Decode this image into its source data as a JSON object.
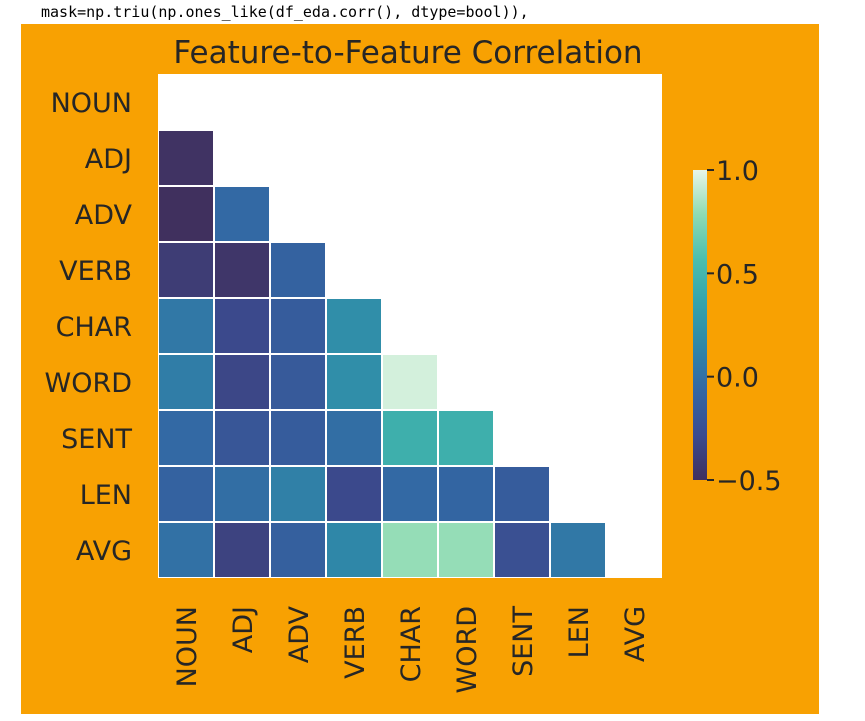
{
  "code": {
    "line": "mask=np.triu(np.ones_like(df_eda.corr(), dtype=bool)),"
  },
  "colors": {
    "figure_background": "#f8a102",
    "plot_background": "#ffffff",
    "text": "#262626",
    "colormap": [
      "#40305e",
      "#3b4b8f",
      "#3366a3",
      "#2f86a8",
      "#34a3ab",
      "#4cbfae",
      "#8fdbb3",
      "#e8f6e8"
    ]
  },
  "chart_data": {
    "type": "heatmap",
    "title": "Feature-to-Feature Correlation",
    "labels": [
      "NOUN",
      "ADJ",
      "ADV",
      "VERB",
      "CHAR",
      "WORD",
      "SENT",
      "LEN",
      "AVG"
    ],
    "mask": "upper-triangle",
    "values": [
      [
        null,
        null,
        null,
        null,
        null,
        null,
        null,
        null,
        null
      ],
      [
        -0.48,
        null,
        null,
        null,
        null,
        null,
        null,
        null,
        null
      ],
      [
        -0.5,
        -0.05,
        null,
        null,
        null,
        null,
        null,
        null,
        null
      ],
      [
        -0.4,
        -0.45,
        -0.1,
        null,
        null,
        null,
        null,
        null,
        null
      ],
      [
        0.05,
        -0.3,
        -0.15,
        0.2,
        null,
        null,
        null,
        null,
        null
      ],
      [
        0.08,
        -0.32,
        -0.17,
        0.2,
        0.95,
        null,
        null,
        null,
        null
      ],
      [
        -0.05,
        -0.2,
        -0.15,
        -0.02,
        0.45,
        0.45,
        null,
        null,
        null
      ],
      [
        -0.1,
        -0.02,
        0.1,
        -0.3,
        -0.05,
        -0.08,
        -0.15,
        null,
        null
      ],
      [
        0.0,
        -0.35,
        -0.12,
        0.15,
        0.8,
        0.8,
        -0.25,
        0.05,
        null
      ]
    ],
    "colorbar": {
      "min": -0.5,
      "max": 1.0,
      "ticks": [
        1.0,
        0.5,
        0.0,
        -0.5
      ],
      "tick_labels": [
        "1.0",
        "0.5",
        "0.0",
        "−0.5"
      ]
    },
    "grid": false,
    "legend": "colorbar-right"
  }
}
